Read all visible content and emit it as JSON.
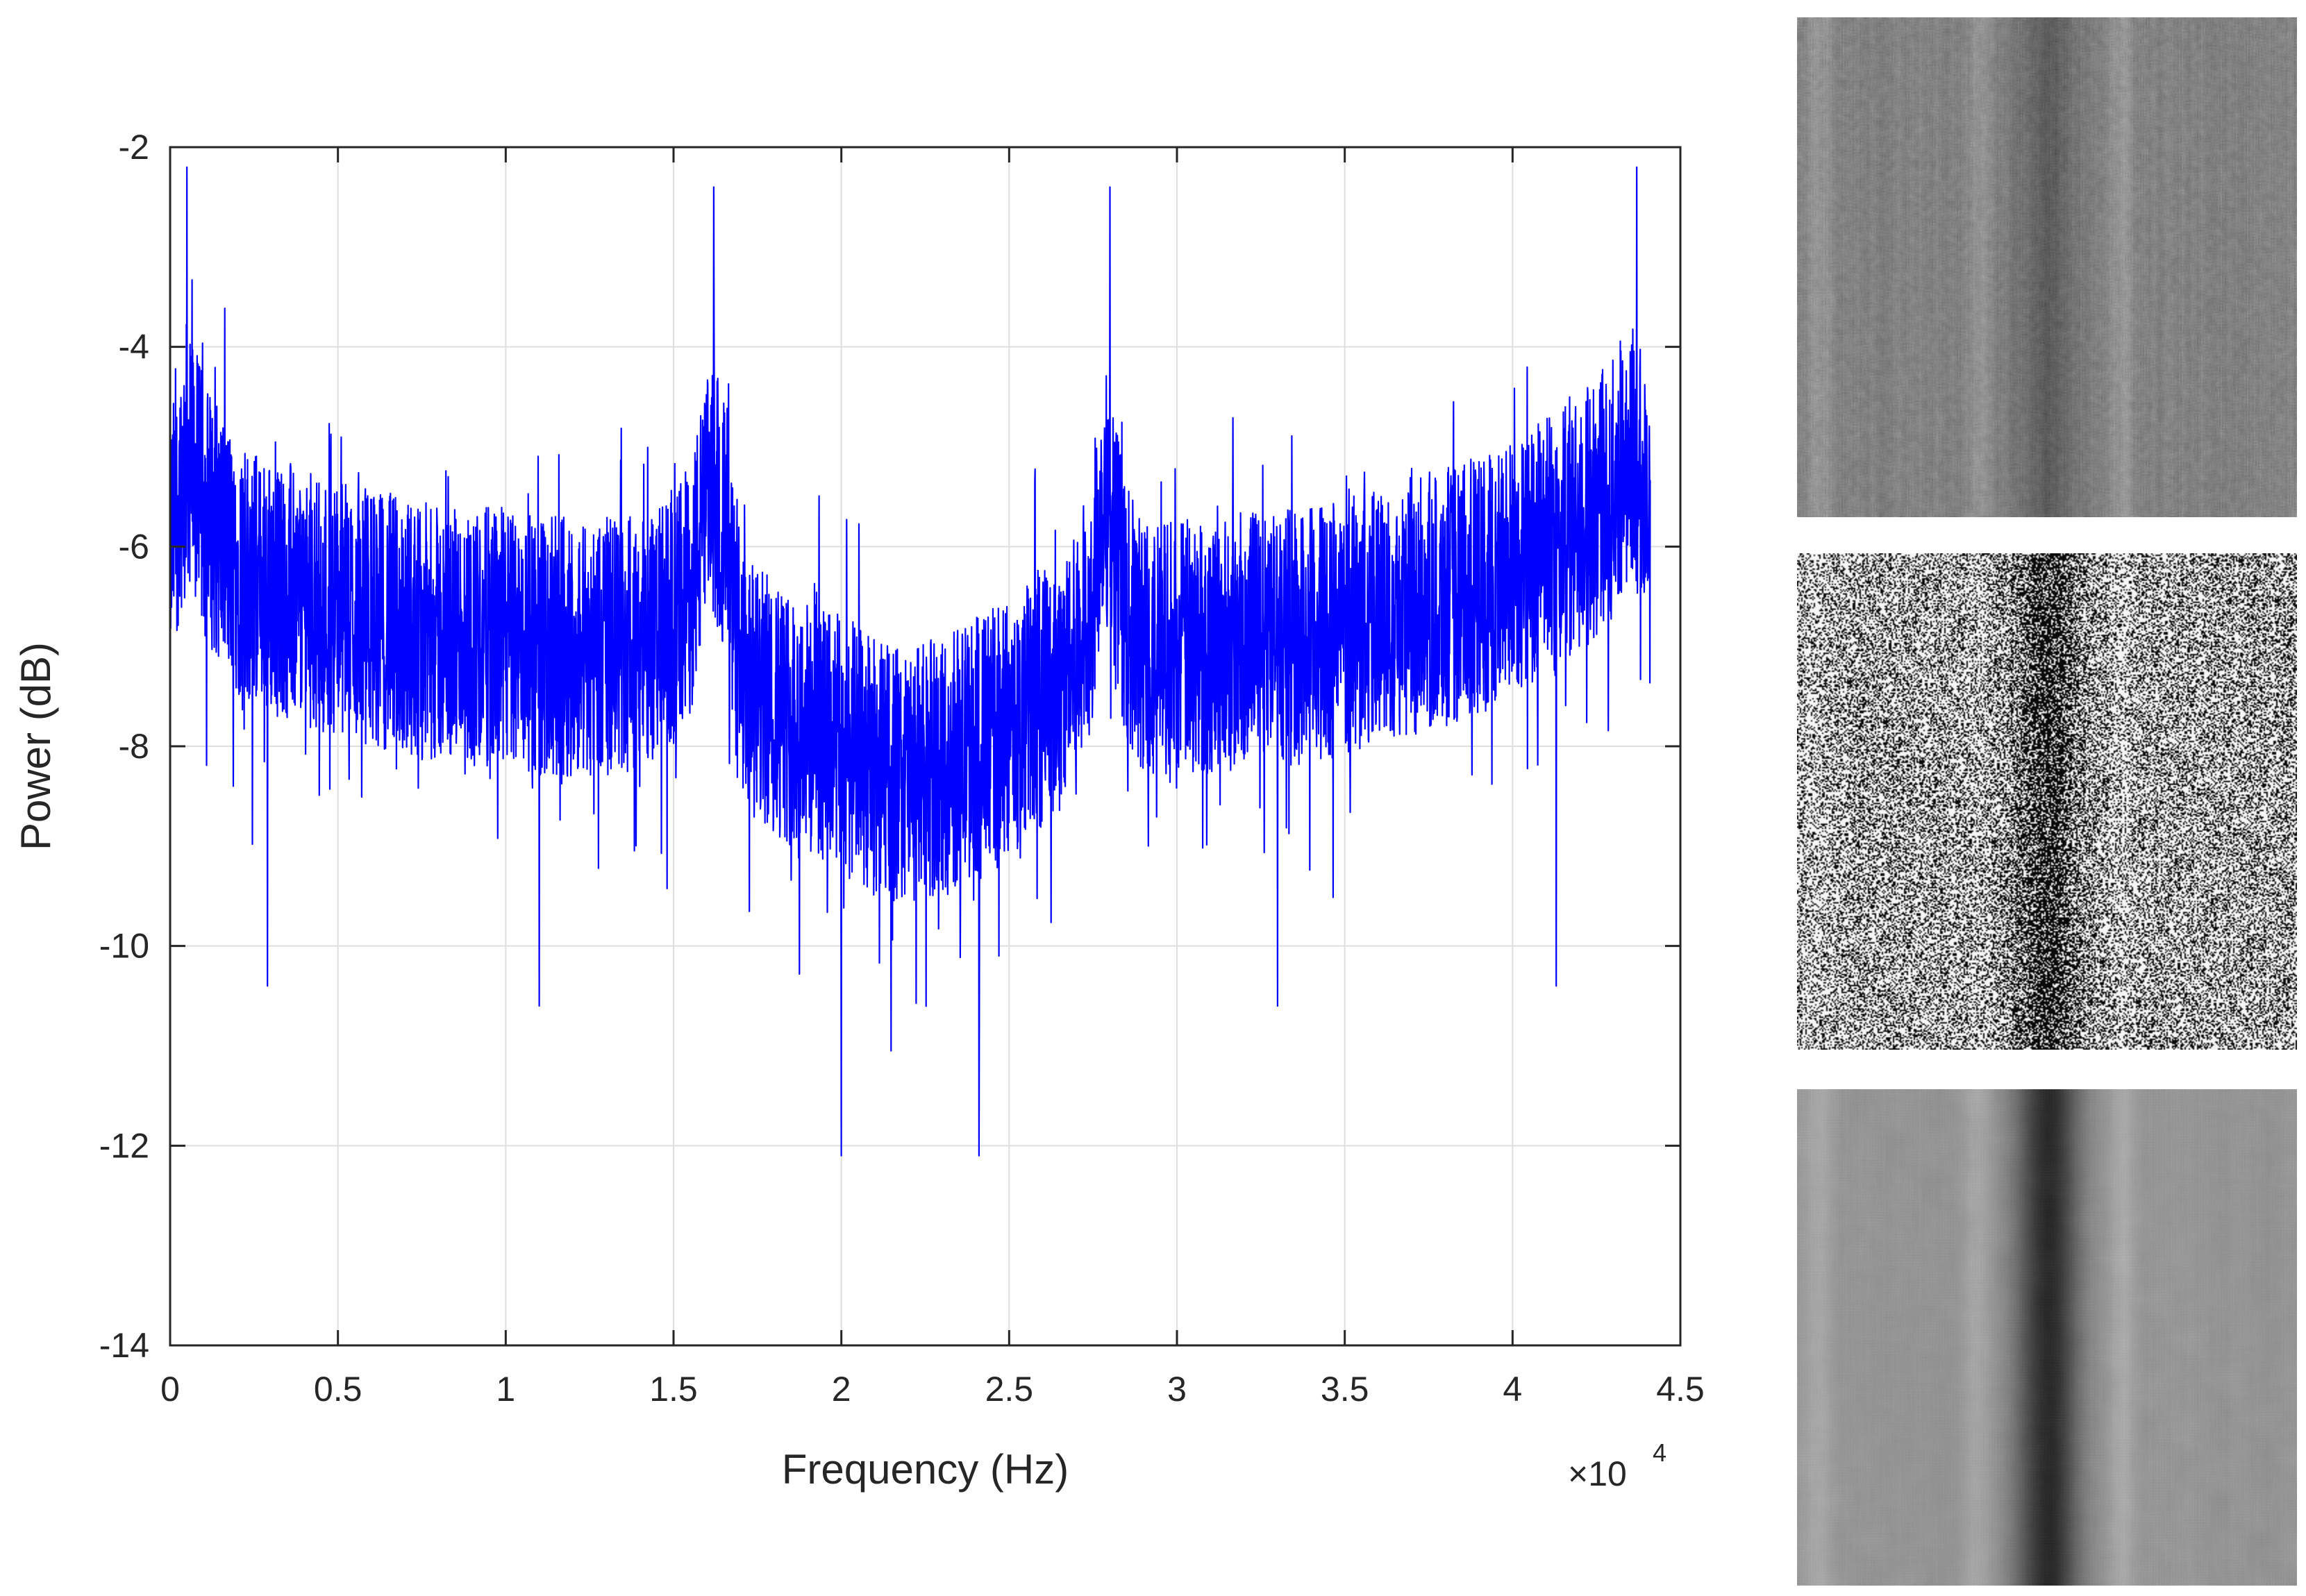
{
  "chart_data": {
    "type": "line",
    "title": "",
    "xlabel": "Frequency (Hz)",
    "ylabel": "Power (dB)",
    "x_exponent_label": "×10",
    "x_exponent_power": "4",
    "xlim": [
      0,
      45000
    ],
    "ylim": [
      -14,
      -2
    ],
    "xticks": [
      0,
      5000,
      10000,
      15000,
      20000,
      25000,
      30000,
      35000,
      40000,
      45000
    ],
    "xtick_labels": [
      "0",
      "0.5",
      "1",
      "1.5",
      "2",
      "2.5",
      "3",
      "3.5",
      "4",
      "4.5"
    ],
    "yticks": [
      -14,
      -12,
      -10,
      -8,
      -6,
      -4,
      -2
    ],
    "ytick_labels": [
      "-14",
      "-12",
      "-10",
      "-8",
      "-6",
      "-4",
      "-2"
    ],
    "grid": true,
    "line_color": "#0000ff",
    "series": [
      {
        "x": [
          0,
          500,
          1000,
          2000,
          3000,
          4000,
          5000,
          6000,
          7000,
          8000,
          9000,
          10000,
          11000,
          12000,
          13000,
          14000,
          15000,
          15500,
          16000,
          16300,
          16500,
          17000,
          18000,
          19000,
          20000,
          21000,
          22000,
          23000,
          24000,
          25000,
          26000,
          27000,
          27500,
          27800,
          28000,
          28500,
          29000,
          30000,
          31000,
          32000,
          33000,
          34000,
          35000,
          36000,
          37000,
          38000,
          39000,
          40000,
          41000,
          42000,
          43000,
          43500,
          44000,
          44100
        ],
        "y": [
          -6.0,
          -5.0,
          -5.6,
          -6.2,
          -6.4,
          -6.5,
          -6.6,
          -6.7,
          -6.8,
          -6.9,
          -6.9,
          -6.9,
          -7.0,
          -7.0,
          -7.0,
          -7.0,
          -6.8,
          -6.4,
          -5.6,
          -5.4,
          -5.8,
          -7.4,
          -7.6,
          -7.8,
          -8.0,
          -8.2,
          -8.3,
          -8.2,
          -8.0,
          -7.8,
          -7.5,
          -7.2,
          -6.4,
          -5.4,
          -5.6,
          -6.7,
          -7.0,
          -7.0,
          -7.0,
          -6.9,
          -6.9,
          -6.9,
          -6.8,
          -6.7,
          -6.6,
          -6.5,
          -6.4,
          -6.2,
          -6.0,
          -5.8,
          -5.4,
          -5.0,
          -5.4,
          -6.2
        ],
        "peaks": [
          {
            "x": 500,
            "y": -2.2
          },
          {
            "x": 16200,
            "y": -2.4
          },
          {
            "x": 28000,
            "y": -2.4
          },
          {
            "x": 43700,
            "y": -2.2
          }
        ],
        "dips": [
          {
            "x": 2900,
            "y": -10.4
          },
          {
            "x": 11000,
            "y": -10.6
          },
          {
            "x": 20000,
            "y": -12.1
          },
          {
            "x": 24100,
            "y": -12.1
          },
          {
            "x": 33000,
            "y": -10.6
          },
          {
            "x": 41300,
            "y": -10.4
          }
        ]
      }
    ]
  },
  "side_panels": [
    {
      "name": "panel-1",
      "base_gray": 130,
      "noise": 22,
      "center_dark": 35,
      "smooth": 1
    },
    {
      "name": "panel-2",
      "base_gray": 150,
      "noise": 120,
      "center_dark": 90,
      "smooth": 0
    },
    {
      "name": "panel-3",
      "base_gray": 150,
      "noise": 35,
      "center_dark": 110,
      "smooth": 6
    }
  ]
}
